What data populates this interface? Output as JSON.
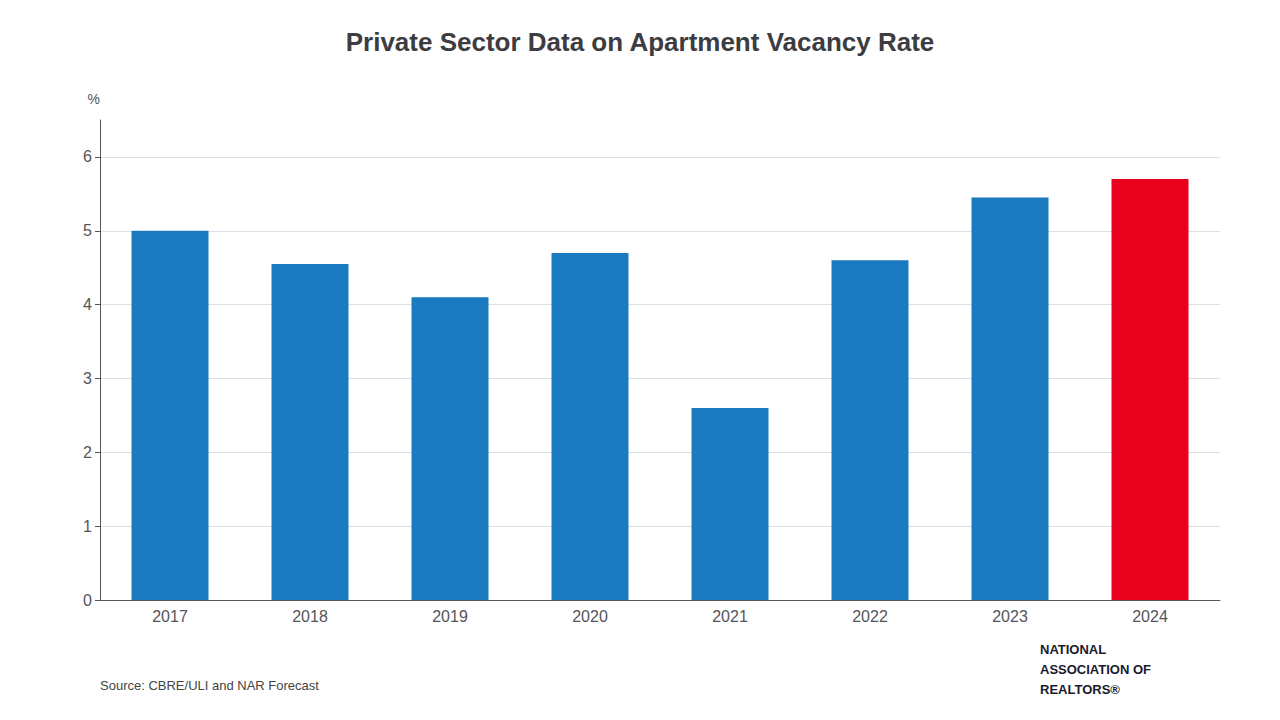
{
  "chart_data": {
    "type": "bar",
    "title": "Private Sector Data on Apartment Vacancy Rate",
    "categories": [
      "2017",
      "2018",
      "2019",
      "2020",
      "2021",
      "2022",
      "2023",
      "2024"
    ],
    "values": [
      5.0,
      4.55,
      4.1,
      4.7,
      2.6,
      4.6,
      5.45,
      5.7
    ],
    "colors": [
      "#1a7abf",
      "#1a7abf",
      "#1a7abf",
      "#1a7abf",
      "#1a7abf",
      "#1a7abf",
      "#1a7abf",
      "#e8001c"
    ],
    "ylabel": "%",
    "ylim": [
      0,
      6.5
    ],
    "yticks": [
      0,
      1,
      2,
      3,
      4,
      5,
      6
    ],
    "grid": true,
    "annotations": [
      "Source: CBRE/ULI and NAR Forecast",
      "NATIONAL",
      "ASSOCIATION OF",
      "REALTORS®"
    ]
  }
}
